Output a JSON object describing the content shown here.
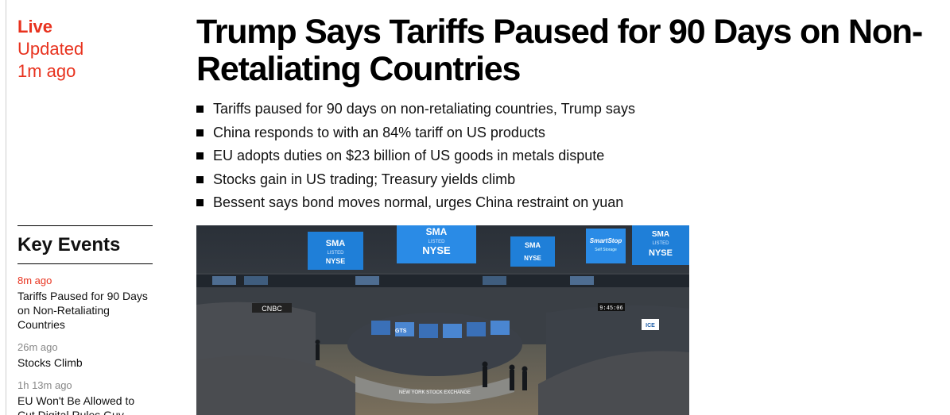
{
  "live": {
    "label": "Live",
    "updated_label": "Updated",
    "updated_time": "1m ago"
  },
  "headline": "Trump Says Tariffs Paused for 90 Days on Non-Retaliating Countries",
  "bullets": [
    "Tariffs paused for 90 days on non-retaliating countries, Trump says",
    "China responds to with an 84% tariff on US products",
    "EU adopts duties on $23 billion of US goods in metals dispute",
    "Stocks gain in US trading; Treasury yields climb",
    "Bessent says bond moves normal, urges China restraint on yuan"
  ],
  "key_events": {
    "title": "Key Events",
    "items": [
      {
        "time": "8m ago",
        "headline": "Tariffs Paused for 90 Days on Non-Retaliating Countries"
      },
      {
        "time": "26m ago",
        "headline": "Stocks Climb"
      },
      {
        "time": "1h 13m ago",
        "headline": "EU Won't Be Allowed to Cut Digital Rules Guy"
      }
    ]
  },
  "hero_image": {
    "signs": [
      "SMA",
      "LISTED",
      "NYSE",
      "SmartStop",
      "Self Storage",
      "CNBC",
      "NEW YORK STOCK EXCHANGE",
      "GTS",
      "ICE",
      "9:45:06"
    ]
  },
  "colors": {
    "accent": "#e8321e",
    "text": "#000000",
    "muted": "#888888"
  }
}
